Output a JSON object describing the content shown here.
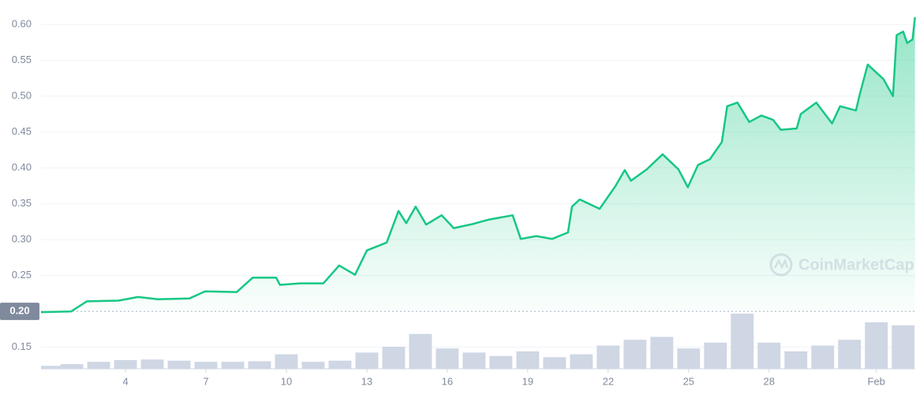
{
  "chart_data": {
    "type": "line",
    "x": [
      0.85,
      1.97,
      2.56,
      3.74,
      4.47,
      5.21,
      6.38,
      6.97,
      8.15,
      8.74,
      9.62,
      9.76,
      10.5,
      11.38,
      11.97,
      12.56,
      13,
      13.74,
      14.18,
      14.47,
      14.82,
      15.21,
      15.79,
      16.24,
      16.97,
      17.56,
      18.44,
      18.74,
      19.32,
      19.91,
      20.5,
      20.65,
      20.94,
      21.68,
      22.26,
      22.62,
      22.85,
      23.44,
      24.03,
      24.62,
      24.97,
      25.35,
      25.79,
      26.24,
      26.44,
      26.82,
      27.26,
      27.71,
      28.15,
      28.44,
      29.03,
      29.18,
      29.76,
      30.35,
      30.65,
      31.24,
      31.38,
      31.68,
      32.26,
      32.62,
      32.76,
      33,
      33.15,
      33.35,
      33.44
    ],
    "series": [
      {
        "color": "#16c784",
        "values": [
          0.199,
          0.2,
          0.214,
          0.215,
          0.22,
          0.217,
          0.218,
          0.228,
          0.227,
          0.247,
          0.247,
          0.237,
          0.239,
          0.239,
          0.264,
          0.251,
          0.285,
          0.296,
          0.34,
          0.323,
          0.346,
          0.321,
          0.334,
          0.316,
          0.322,
          0.328,
          0.334,
          0.301,
          0.305,
          0.301,
          0.31,
          0.346,
          0.356,
          0.343,
          0.374,
          0.397,
          0.382,
          0.398,
          0.419,
          0.398,
          0.373,
          0.404,
          0.412,
          0.436,
          0.486,
          0.491,
          0.464,
          0.473,
          0.467,
          0.453,
          0.455,
          0.475,
          0.491,
          0.462,
          0.486,
          0.48,
          0.502,
          0.544,
          0.524,
          0.5,
          0.585,
          0.59,
          0.574,
          0.579,
          0.61
        ]
      }
    ],
    "volume": {
      "color": "#cfd6e4",
      "x": [
        1,
        2,
        3,
        4,
        5,
        6,
        7,
        8,
        9,
        10,
        11,
        12,
        13,
        14,
        15,
        16,
        17,
        18,
        19,
        20,
        21,
        22,
        23,
        24,
        25,
        26,
        27,
        28,
        29,
        30,
        31,
        32,
        33
      ],
      "values": [
        5,
        8,
        12,
        15,
        16,
        14,
        12,
        12,
        13,
        25,
        12,
        14,
        28,
        38,
        60,
        35,
        28,
        22,
        30,
        20,
        25,
        40,
        50,
        55,
        35,
        45,
        95,
        45,
        30,
        40,
        50,
        80,
        75
      ]
    },
    "xlim": [
      0.85,
      33.45
    ],
    "xticks": [
      4,
      7,
      10,
      13,
      16,
      19,
      22,
      25,
      28,
      {
        "value": 32,
        "label": "Feb"
      }
    ],
    "ylim": [
      0.12,
      0.634
    ],
    "yticks": [
      0.15,
      0.25,
      {
        "value": 0.3,
        "label": "0.30"
      },
      0.35,
      {
        "value": 0.4,
        "label": "0.40"
      },
      0.45,
      {
        "value": 0.5,
        "label": "0.50"
      },
      0.55,
      {
        "value": 0.6,
        "label": "0.60"
      }
    ],
    "baseline": {
      "value": 0.2,
      "label": "0.20"
    },
    "grid": true,
    "watermark": "CoinMarketCap"
  }
}
